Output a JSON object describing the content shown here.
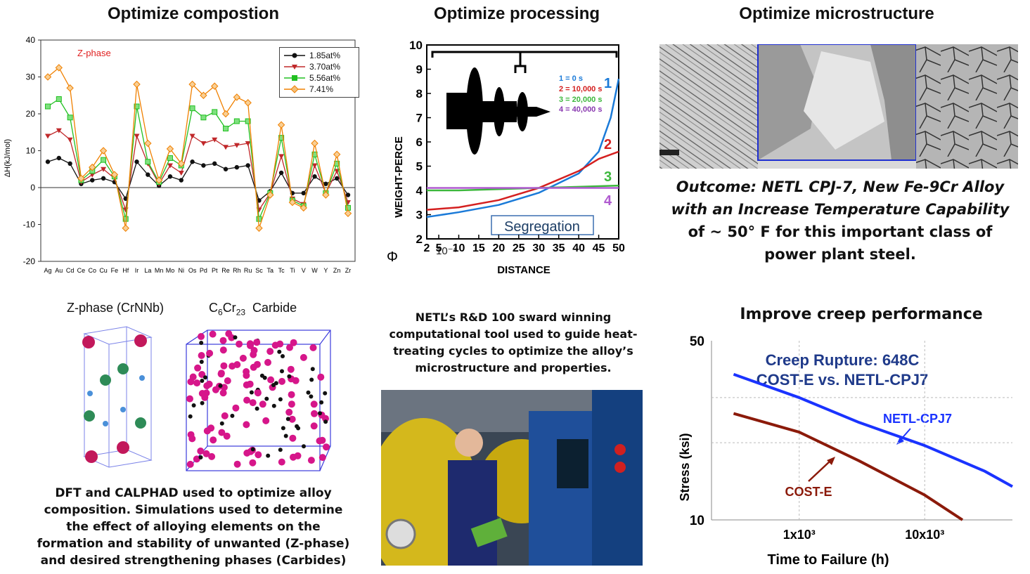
{
  "titles": {
    "composition": "Optimize compostion",
    "processing": "Optimize processing",
    "microstructure": "Optimize microstructure",
    "creep": "Improve creep performance"
  },
  "composition_chart": {
    "annotation": "Z-phase",
    "ylabel": "ΔH(kJ/mol)",
    "y_ticks": [
      "40",
      "30",
      "20",
      "10",
      "0",
      "-10",
      "-20"
    ],
    "legend": [
      "1.85at%",
      "3.70at%",
      "5.56at%",
      "7.41%"
    ]
  },
  "processing_chart": {
    "ylabel": "WEIGHT-PERCE",
    "xlabel": "DISTANCE",
    "x_prefix": "10⁻⁶",
    "x_ticks": [
      "2",
      "5",
      "10",
      "15",
      "20",
      "25",
      "30",
      "35",
      "40",
      "45",
      "50"
    ],
    "y_ticks": [
      "10",
      "9",
      "8",
      "7",
      "6",
      "5",
      "4",
      "3",
      "2"
    ],
    "legend": [
      "1 = 0 s",
      "2 = 10,000 s",
      "3 = 20,000 s",
      "4 = 40,000 s"
    ],
    "curve_labels": [
      "1",
      "2",
      "3",
      "4"
    ],
    "box_label": "Segregation",
    "symbol": "Φ"
  },
  "outcome": {
    "line1": "Outcome:  NETL CPJ-7, New Fe-9Cr Alloy",
    "line2": "with an Increase Temperature Capability",
    "line3": "of ~ 50° F  for this important  class of",
    "line4": "power plant steel."
  },
  "crystal": {
    "zphase_label": "Z-phase (CrNNb)",
    "carbide_label": "C6Cr23  Carbide"
  },
  "dft_caption": [
    "DFT  and CALPHAD used to optimize alloy",
    "composition. Simulations used to determine",
    "the effect of alloying elements on the",
    "formation and stability  of unwanted (Z-phase)",
    "and desired strengthening phases (Carbides)"
  ],
  "netl_caption": [
    "NETL’s R&D 100 sward winning",
    "computational  tool  used to guide heat-",
    "treating cycles to optimize the alloy’s",
    "microstructure and properties."
  ],
  "creep_chart": {
    "title_line1": "Creep Rupture: 648C",
    "title_line2": "COST-E vs. NETL-CPJ7",
    "ylabel": "Stress (ksi)",
    "xlabel": "Time to Failure (h)",
    "y_ticks": [
      "50",
      "10"
    ],
    "x_ticks": [
      "1x10³",
      "10x10³"
    ],
    "series_labels": [
      "NETL-CPJ7",
      "COST-E"
    ],
    "colors": {
      "netl": "#1a33ff",
      "coste": "#8b1a0a",
      "title": "#1f3a8a"
    }
  },
  "chart_data": [
    {
      "type": "line",
      "categories": [
        "Ag",
        "Au",
        "Cd",
        "Ce",
        "Co",
        "Cu",
        "Fe",
        "Hf",
        "Ir",
        "La",
        "Mn",
        "Mo",
        "Ni",
        "Os",
        "Pd",
        "Pt",
        "Re",
        "Rh",
        "Ru",
        "Sc",
        "Ta",
        "Tc",
        "Ti",
        "V",
        "W",
        "Y",
        "Zn",
        "Zr"
      ],
      "ylim": [
        -20,
        40
      ],
      "series": [
        {
          "name": "1.85at%",
          "color": "#111111",
          "values": [
            7,
            8,
            6.5,
            1,
            2,
            2.5,
            1.5,
            -3,
            7,
            3.5,
            0.5,
            3,
            2,
            7,
            6,
            6.5,
            5,
            5.5,
            6,
            -3.5,
            -1,
            4,
            -1.5,
            -1.5,
            3,
            1,
            2.5,
            -2
          ]
        },
        {
          "name": "3.70at%",
          "color": "#c0282a",
          "values": [
            14,
            15.5,
            13,
            1.5,
            3.5,
            5,
            2.5,
            -6,
            14,
            6.5,
            1,
            6,
            4,
            14,
            12,
            13,
            11,
            11.5,
            12,
            -6,
            -1.5,
            8.5,
            -3,
            -4.5,
            6,
            -1.5,
            4.5,
            -4
          ]
        },
        {
          "name": "5.56at%",
          "color": "#22c022",
          "values": [
            22,
            24,
            19,
            2,
            4.5,
            7.5,
            3,
            -8.5,
            22,
            7,
            1.5,
            8,
            6,
            21.5,
            19,
            20.5,
            16,
            18,
            18,
            -8.5,
            -1.5,
            13.5,
            -3.5,
            -5,
            9,
            -1.5,
            6.5,
            -5.5
          ]
        },
        {
          "name": "7.41%",
          "color": "#f08000",
          "values": [
            30,
            32.5,
            27,
            2.5,
            5.5,
            10,
            3.5,
            -11,
            28,
            12,
            2,
            10.5,
            6.5,
            28,
            25,
            27.5,
            20,
            24.5,
            23,
            -11,
            -2,
            17,
            -4,
            -5.5,
            12,
            -2,
            9,
            -7
          ]
        }
      ]
    },
    {
      "type": "line",
      "xlabel": "DISTANCE",
      "ylabel": "WEIGHT-PERCE",
      "xlim": [
        2,
        50
      ],
      "ylim": [
        2,
        10
      ],
      "series": [
        {
          "name": "1 = 0 s",
          "color": "#1a7ad8",
          "x": [
            2,
            10,
            20,
            30,
            40,
            45,
            48,
            50
          ],
          "values": [
            2.9,
            3.1,
            3.4,
            3.9,
            4.7,
            5.6,
            7.0,
            8.6
          ]
        },
        {
          "name": "2 = 10,000 s",
          "color": "#d42020",
          "x": [
            2,
            10,
            20,
            30,
            40,
            45,
            50
          ],
          "values": [
            3.2,
            3.3,
            3.6,
            4.1,
            4.8,
            5.3,
            5.6
          ]
        },
        {
          "name": "3 = 20,000 s",
          "color": "#3db83d",
          "x": [
            2,
            10,
            20,
            30,
            40,
            50
          ],
          "values": [
            4.0,
            4.0,
            4.05,
            4.1,
            4.15,
            4.2
          ]
        },
        {
          "name": "4 = 40,000 s",
          "color": "#b05ad0",
          "x": [
            2,
            50
          ],
          "values": [
            4.1,
            4.1
          ]
        }
      ]
    },
    {
      "type": "line",
      "xlabel": "Time to Failure (h)",
      "ylabel": "Stress (ksi)",
      "xscale": "log",
      "yscale": "log",
      "xlim": [
        200,
        50000
      ],
      "ylim": [
        10,
        50
      ],
      "series": [
        {
          "name": "NETL-CPJ7",
          "color": "#1a33ff",
          "x": [
            300,
            1000,
            3000,
            10000,
            30000,
            50000
          ],
          "values": [
            37,
            30,
            24,
            19.5,
            15.5,
            13.5
          ]
        },
        {
          "name": "COST-E",
          "color": "#8b1a0a",
          "x": [
            300,
            1000,
            3000,
            10000,
            20000
          ],
          "values": [
            26,
            22,
            17,
            12.5,
            10
          ]
        }
      ]
    }
  ]
}
